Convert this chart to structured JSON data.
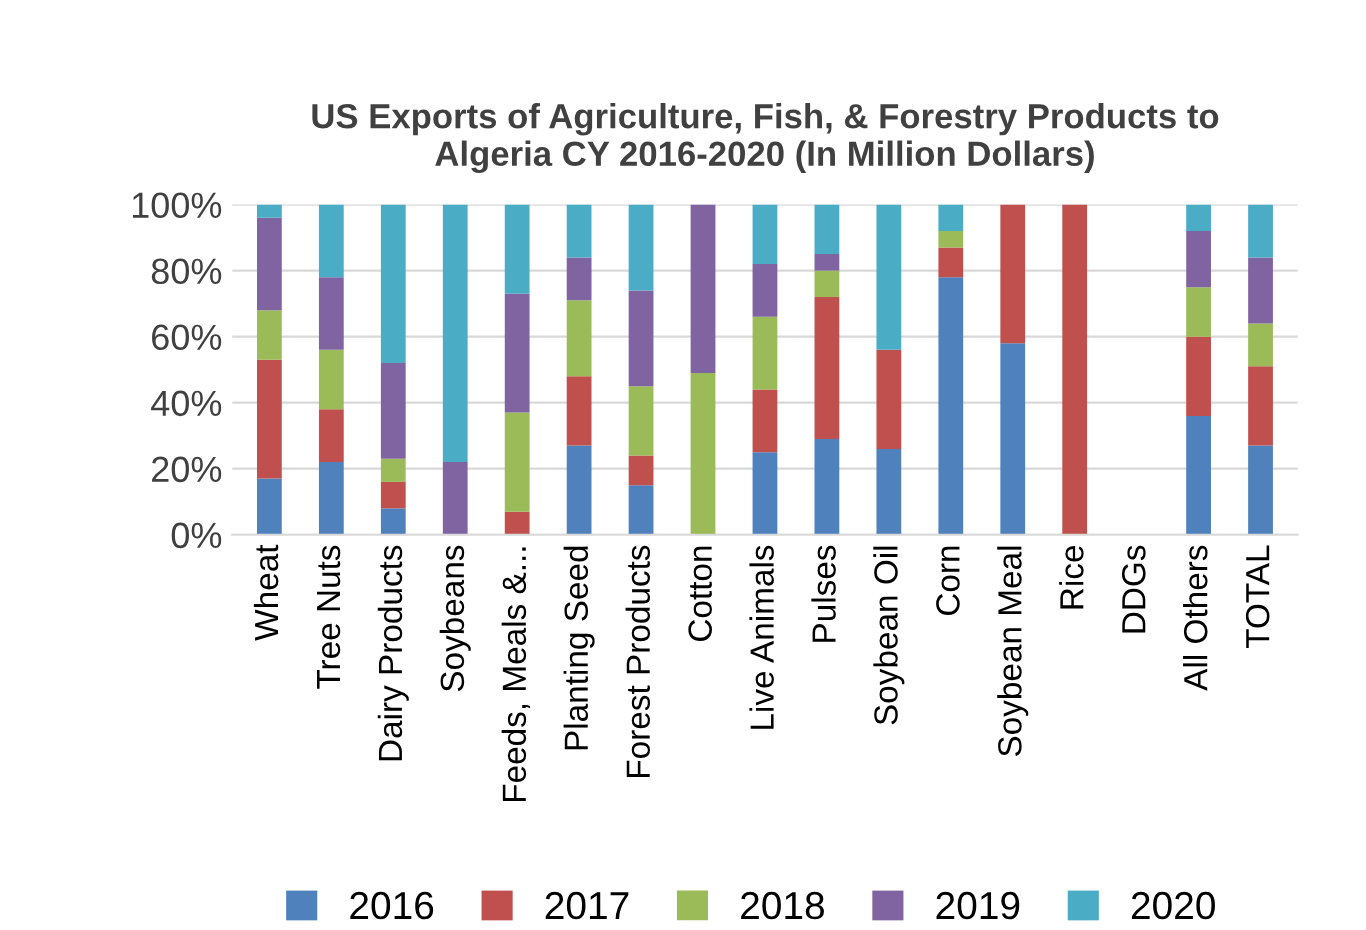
{
  "chart_data": {
    "type": "bar",
    "stacked": true,
    "title": "US Exports of Agriculture, Fish, & Forestry Products to\nAlgeria CY 2016-2020 (In Million Dollars)",
    "categories": [
      "Wheat",
      "Tree Nuts",
      "Dairy Products",
      "Soybeans",
      "Feeds, Meals &...",
      "Planting Seed",
      "Forest Products",
      "Cotton",
      "Live Animals",
      "Pulses",
      "Soybean Oil",
      "Corn",
      "Soybean Meal",
      "Rice",
      "DDGs",
      "All Others",
      "TOTAL"
    ],
    "series": [
      {
        "name": "2016",
        "color": "#4f81bd",
        "values": [
          17,
          22,
          8,
          0,
          0,
          27,
          15,
          0,
          25,
          29,
          26,
          78,
          58,
          0,
          0,
          36,
          27
        ]
      },
      {
        "name": "2017",
        "color": "#c0504d",
        "values": [
          36,
          16,
          8,
          0,
          7,
          21,
          9,
          0,
          19,
          43,
          30,
          9,
          42,
          100,
          0,
          24,
          24
        ]
      },
      {
        "name": "2018",
        "color": "#9bbb59",
        "values": [
          15,
          18,
          7,
          0,
          30,
          23,
          21,
          49,
          22,
          8,
          0,
          5,
          0,
          0,
          0,
          15,
          13
        ]
      },
      {
        "name": "2019",
        "color": "#8064a2",
        "values": [
          28,
          22,
          29,
          22,
          36,
          13,
          29,
          51,
          16,
          5,
          0,
          0,
          0,
          0,
          0,
          17,
          20
        ]
      },
      {
        "name": "2020",
        "color": "#4bacc6",
        "values": [
          4,
          22,
          48,
          78,
          27,
          16,
          26,
          0,
          18,
          15,
          44,
          8,
          0,
          0,
          0,
          8,
          16
        ]
      }
    ],
    "ylim": [
      0,
      100
    ],
    "yticks": [
      {
        "value": 0,
        "label": "0%"
      },
      {
        "value": 20,
        "label": "20%"
      },
      {
        "value": 40,
        "label": "40%"
      },
      {
        "value": 60,
        "label": "60%"
      },
      {
        "value": 80,
        "label": "80%"
      },
      {
        "value": 100,
        "label": "100%"
      }
    ],
    "grid": "y",
    "legend": "bottom"
  }
}
